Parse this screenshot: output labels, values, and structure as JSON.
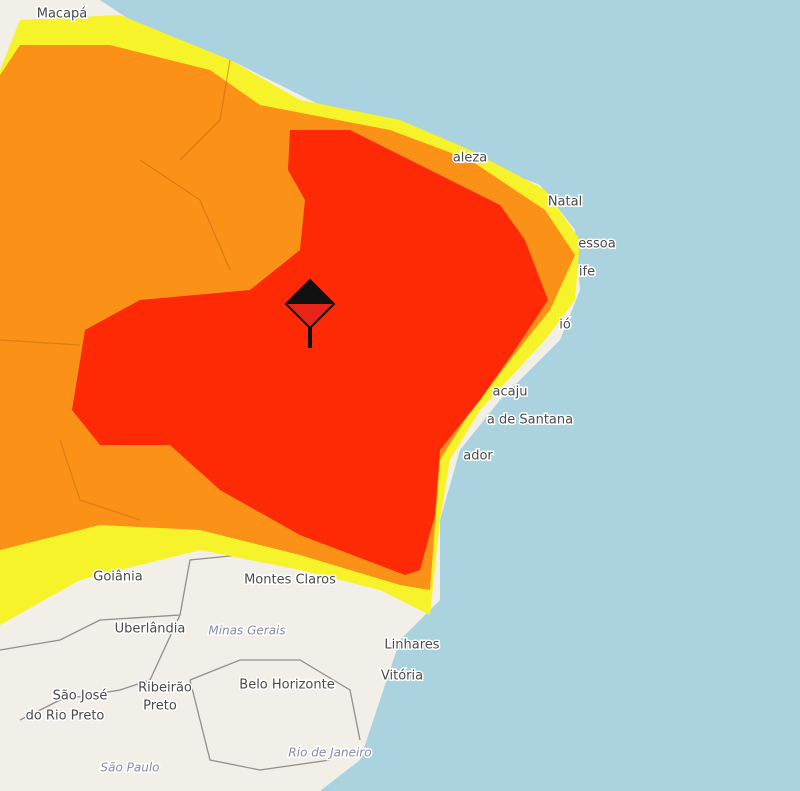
{
  "labels": [
    "Macapá",
    "aleza",
    "Natal",
    "essoa",
    "ife",
    "ió",
    "acaju",
    "a de Santana",
    "ador",
    "Goiânia",
    "Montes Claros",
    "Uberlândia",
    "Minas Gerais",
    "Belo Horizonte",
    "Linhares",
    "Vitória",
    "São José",
    "do Rio Preto",
    "Ribeirão",
    "Preto",
    "Rio de Janeiro",
    "São Paulo"
  ]
}
